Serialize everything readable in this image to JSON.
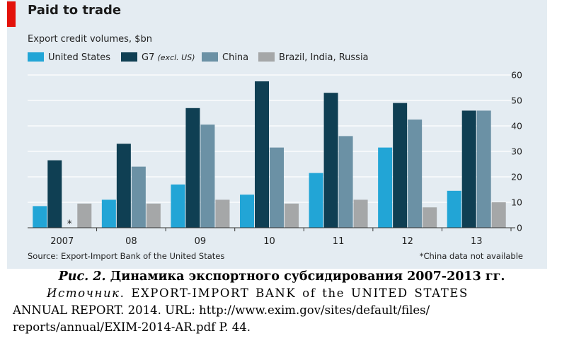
{
  "chart_data": {
    "type": "bar",
    "title": "Paid to trade",
    "subtitle": "Export credit volumes, $bn",
    "categories": [
      "2007",
      "08",
      "09",
      "10",
      "11",
      "12",
      "13"
    ],
    "series": [
      {
        "name": "United States",
        "note": "",
        "color": "#22a5d6",
        "values": [
          8.5,
          11,
          17,
          13,
          21.5,
          31.5,
          14.5
        ]
      },
      {
        "name": "G7",
        "note": "(excl. US)",
        "color": "#0f3f53",
        "values": [
          26.5,
          33,
          47,
          57.5,
          53,
          49,
          46
        ]
      },
      {
        "name": "China",
        "note": "",
        "color": "#6b91a5",
        "values": [
          null,
          24,
          40.5,
          31.5,
          36,
          42.5,
          46
        ]
      },
      {
        "name": "Brazil, India, Russia",
        "note": "",
        "color": "#a5a7a8",
        "values": [
          9.5,
          9.5,
          11,
          9.5,
          11,
          8,
          10
        ]
      }
    ],
    "ylim": [
      0,
      60
    ],
    "yticks": [
      "0",
      "10",
      "20",
      "30",
      "40",
      "50",
      "60"
    ],
    "ytick_values": [
      0,
      10,
      20,
      30,
      40,
      50,
      60
    ],
    "y_axis_position": "right",
    "missing_marker": "*",
    "source": "Source: Export-Import Bank of the United States",
    "footnote": "*China data not available"
  },
  "caption": {
    "figure_number": "Рис. 2.",
    "figure_title": "Динамика экспортного субсидирования 2007-2013 гг.",
    "source_label": "Источник",
    "source_line1": ". EXPORT-IMPORT BANK of the UNITED STATES",
    "source_line2": "ANNUAL REPORT. 2014. URL: http://www.exim.gov/sites/default/files/",
    "source_line3": "reports/annual/EXIM-2014-AR.pdf P. 44."
  }
}
